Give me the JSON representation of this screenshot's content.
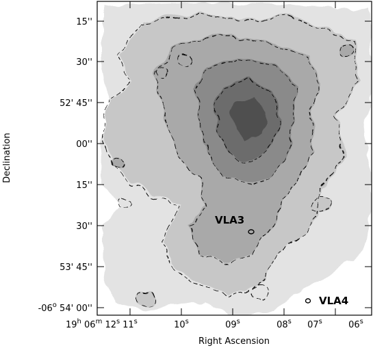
{
  "figure": {
    "xlabel": "Right Ascension",
    "ylabel": "Declination",
    "dec_ticks": [
      {
        "main": "15''"
      },
      {
        "main": "30''"
      },
      {
        "main": "52' 45''"
      },
      {
        "main": "00''"
      },
      {
        "main": "15''"
      },
      {
        "main": "30''"
      },
      {
        "main": "53' 45''"
      },
      {
        "main": "-06",
        "sup": "o",
        "tail": " 54' 00''"
      }
    ],
    "ra_ticks": [
      {
        "pre": "19",
        "sup": "h",
        "mid": " 06",
        "sup2": "m",
        "tail": " 12",
        "sup3": "s"
      },
      {
        "main": "11",
        "sup": "s"
      },
      {
        "main": "10",
        "sup": "s"
      },
      {
        "main": "09",
        "sup": "s"
      },
      {
        "main": "08",
        "sup": "s"
      },
      {
        "main": "07",
        "sup": "s"
      },
      {
        "main": "06",
        "sup": "s"
      }
    ],
    "sources": [
      {
        "label": "VLA3"
      },
      {
        "label": "VLA4"
      }
    ],
    "colors": {
      "bg": "#ffffff",
      "level1": "#e3e3e3",
      "level2": "#c7c7c7",
      "level3": "#a9a9a9",
      "level4": "#8a8a8a",
      "level5": "#6c6c6c",
      "level6": "#4f4f4f"
    }
  }
}
